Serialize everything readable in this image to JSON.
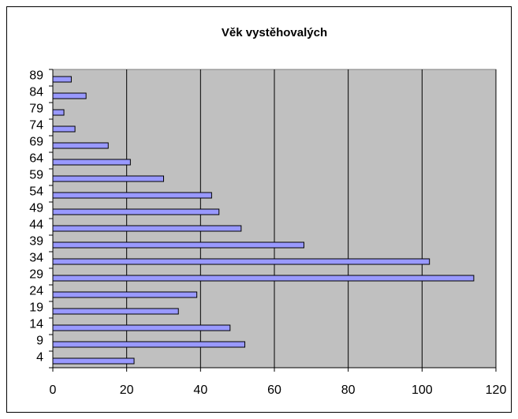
{
  "chart_data": {
    "type": "barh",
    "title": "Věk vystěhovalých",
    "categories": [
      "4",
      "9",
      "14",
      "19",
      "24",
      "29",
      "34",
      "39",
      "44",
      "49",
      "54",
      "59",
      "64",
      "69",
      "74",
      "79",
      "84",
      "89"
    ],
    "values": [
      22,
      52,
      48,
      34,
      39,
      114,
      102,
      68,
      51,
      45,
      43,
      30,
      21,
      15,
      6,
      3,
      9,
      5
    ],
    "color": "#9999ff",
    "xlim": [
      0,
      120
    ],
    "xticks": [
      0,
      20,
      40,
      60,
      80,
      100,
      120
    ],
    "grid": true
  }
}
